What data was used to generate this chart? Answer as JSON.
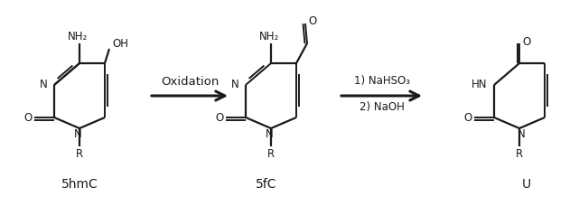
{
  "bg_color": "#ffffff",
  "line_color": "#1a1a1a",
  "font_size_atom": 8.5,
  "font_size_name": 10,
  "arrow1_label": "Oxidation",
  "arrow2_label1": "1) NaHSO₃",
  "arrow2_label2": "2) NaOH",
  "mol1_name": "5hmC",
  "mol2_name": "5fC",
  "mol3_name": "U",
  "figsize": [
    6.41,
    2.18
  ],
  "dpi": 100
}
